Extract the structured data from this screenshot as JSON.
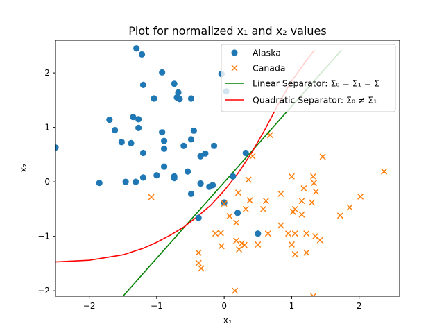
{
  "chart_data": {
    "type": "scatter",
    "title": "Plot for normalized x₁ and x₂ values",
    "xlabel": "x₁",
    "ylabel": "x₂",
    "xlim": [
      -2.5,
      2.6
    ],
    "ylim": [
      -2.1,
      2.6
    ],
    "xticks": [
      -2,
      -1,
      0,
      1,
      2
    ],
    "yticks": [
      -2,
      -1,
      0,
      1,
      2
    ],
    "xtick_labels": [
      "−2",
      "−1",
      "0",
      "1",
      "2"
    ],
    "ytick_labels": [
      "−2",
      "−1",
      "0",
      "1",
      "2"
    ],
    "grid": false,
    "legend_position": "top-right",
    "colors": {
      "alaska": "#1f77b4",
      "canada": "#ff7f0e",
      "linear": "#008000",
      "quadratic": "#ff0000"
    },
    "series": [
      {
        "name": "Alaska",
        "kind": "scatter",
        "marker": "circle",
        "points": [
          [
            -2.5,
            0.63
          ],
          [
            -1.85,
            -0.02
          ],
          [
            -1.7,
            1.14
          ],
          [
            -1.62,
            0.95
          ],
          [
            -1.52,
            0.73
          ],
          [
            -1.46,
            0.0
          ],
          [
            -1.38,
            0.71
          ],
          [
            -1.31,
            0.0
          ],
          [
            -1.35,
            1.19
          ],
          [
            -1.3,
            2.45
          ],
          [
            -1.27,
            1.15
          ],
          [
            -1.27,
            0.99
          ],
          [
            -1.22,
            2.34
          ],
          [
            -1.2,
            1.78
          ],
          [
            -1.2,
            0.53
          ],
          [
            -1.2,
            0.08
          ],
          [
            -1.04,
            1.53
          ],
          [
            -1.0,
            0.12
          ],
          [
            -0.92,
            2.01
          ],
          [
            -0.92,
            0.91
          ],
          [
            -0.89,
            0.75
          ],
          [
            -0.89,
            0.61
          ],
          [
            -0.89,
            0.28
          ],
          [
            -0.74,
            0.1
          ],
          [
            -0.74,
            0.07
          ],
          [
            -0.74,
            1.8
          ],
          [
            -0.7,
            1.55
          ],
          [
            -0.68,
            1.64
          ],
          [
            -0.66,
            1.52
          ],
          [
            -0.6,
            0.66
          ],
          [
            -0.54,
            0.19
          ],
          [
            -0.49,
            1.53
          ],
          [
            -0.49,
            0.78
          ],
          [
            -0.49,
            -0.22
          ],
          [
            -0.45,
            0.94
          ],
          [
            -0.35,
            0.47
          ],
          [
            -0.35,
            -0.03
          ],
          [
            -0.28,
            0.52
          ],
          [
            -0.22,
            -0.09
          ],
          [
            -0.17,
            -0.06
          ],
          [
            -0.15,
            0.66
          ],
          [
            -0.04,
            1.98
          ],
          [
            0.0,
            -0.38
          ],
          [
            0.03,
            1.66
          ],
          [
            0.13,
            0.1
          ],
          [
            0.2,
            -0.57
          ],
          [
            0.32,
            0.53
          ],
          [
            0.5,
            -0.95
          ],
          [
            -0.38,
            -0.66
          ]
        ]
      },
      {
        "name": "Canada",
        "kind": "scatter",
        "marker": "x",
        "points": [
          [
            -1.08,
            -0.28
          ],
          [
            -0.38,
            -1.3
          ],
          [
            -0.38,
            -1.49
          ],
          [
            -0.34,
            -1.59
          ],
          [
            -0.13,
            -0.95
          ],
          [
            -0.05,
            -0.94
          ],
          [
            -0.04,
            -1.18
          ],
          [
            0.0,
            -0.4
          ],
          [
            0.08,
            -0.63
          ],
          [
            0.16,
            -2.0
          ],
          [
            0.18,
            -0.75
          ],
          [
            0.18,
            -1.08
          ],
          [
            0.21,
            -0.2
          ],
          [
            0.22,
            -1.24
          ],
          [
            0.26,
            -1.13
          ],
          [
            0.3,
            -1.16
          ],
          [
            0.32,
            -0.5
          ],
          [
            0.36,
            0.04
          ],
          [
            0.38,
            -0.34
          ],
          [
            0.42,
            0.47
          ],
          [
            0.5,
            -1.15
          ],
          [
            0.58,
            -0.5
          ],
          [
            0.62,
            -0.35
          ],
          [
            0.65,
            -0.95
          ],
          [
            0.68,
            0.86
          ],
          [
            0.84,
            -0.22
          ],
          [
            0.84,
            -0.8
          ],
          [
            0.95,
            -0.95
          ],
          [
            1.0,
            0.1
          ],
          [
            1.0,
            -1.15
          ],
          [
            1.02,
            -0.55
          ],
          [
            1.05,
            -0.5
          ],
          [
            1.05,
            -1.33
          ],
          [
            1.05,
            -0.95
          ],
          [
            1.15,
            -0.6
          ],
          [
            1.15,
            -0.35
          ],
          [
            1.18,
            -0.12
          ],
          [
            1.22,
            -0.95
          ],
          [
            1.22,
            -1.3
          ],
          [
            1.3,
            -0.38
          ],
          [
            1.32,
            0.1
          ],
          [
            1.33,
            -0.02
          ],
          [
            1.35,
            -1.0
          ],
          [
            1.36,
            -0.18
          ],
          [
            1.42,
            -1.07
          ],
          [
            1.46,
            0.46
          ],
          [
            1.32,
            -2.1
          ],
          [
            1.72,
            -0.62
          ],
          [
            1.86,
            -0.47
          ],
          [
            2.02,
            -0.27
          ],
          [
            2.37,
            0.19
          ]
        ]
      },
      {
        "name": "Linear Separator: Σ₀ = Σ₁ = Σ",
        "kind": "line",
        "points": [
          [
            -1.5,
            -2.1
          ],
          [
            1.74,
            2.42
          ]
        ]
      },
      {
        "name": "Quadratic Separator: Σ₀ ≠ Σ₁",
        "kind": "line",
        "points": [
          [
            -2.5,
            -1.47
          ],
          [
            -2.0,
            -1.44
          ],
          [
            -1.5,
            -1.34
          ],
          [
            -1.2,
            -1.22
          ],
          [
            -1.0,
            -1.11
          ],
          [
            -0.8,
            -0.98
          ],
          [
            -0.6,
            -0.83
          ],
          [
            -0.4,
            -0.64
          ],
          [
            -0.2,
            -0.43
          ],
          [
            0.0,
            -0.16
          ],
          [
            0.2,
            0.15
          ],
          [
            0.4,
            0.52
          ],
          [
            0.6,
            0.95
          ],
          [
            0.8,
            1.42
          ],
          [
            1.0,
            1.85
          ],
          [
            1.2,
            2.2
          ],
          [
            1.34,
            2.42
          ]
        ]
      }
    ]
  }
}
